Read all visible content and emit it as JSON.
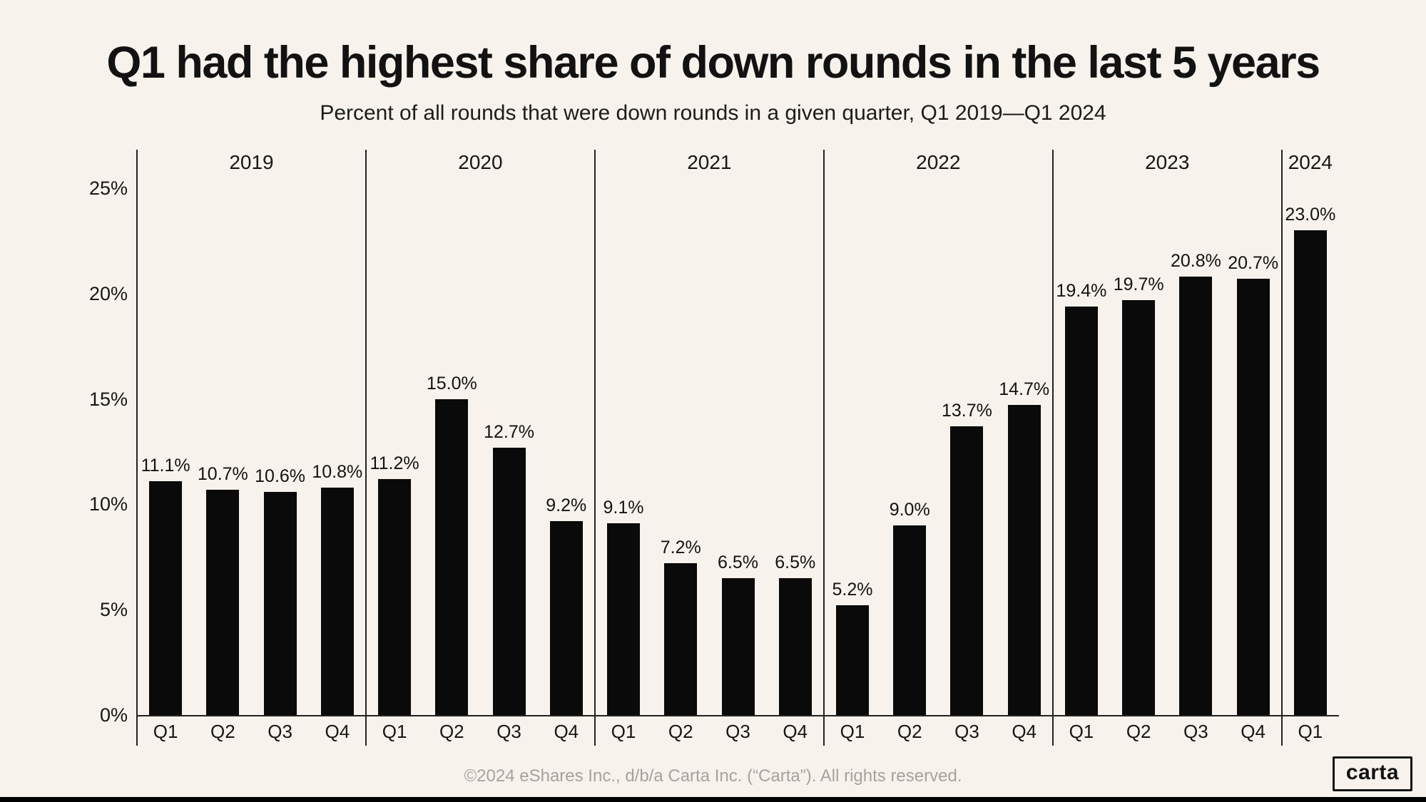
{
  "page": {
    "footer": "©2024 eShares Inc., d/b/a Carta Inc. (“Carta”). All rights reserved.",
    "logo_text": "carta"
  },
  "colors": {
    "background": "#f7f3ec",
    "bar": "#0a0a0a",
    "axis_line": "#222222",
    "text": "#161616",
    "muted_footer": "#a7a29c"
  },
  "chart_data": {
    "type": "bar",
    "title": "Q1 had the highest share of down rounds in the last 5 years",
    "subtitle": "Percent of all rounds that were down rounds in a given quarter, Q1 2019—Q1 2024",
    "xlabel": "",
    "ylabel": "",
    "ylim": [
      0,
      25
    ],
    "ytick_values": [
      0,
      5,
      10,
      15,
      20,
      25
    ],
    "ytick_suffix": "%",
    "grid": false,
    "legend": false,
    "value_label_decimals": 1,
    "value_label_suffix": "%",
    "groups": [
      {
        "year": "2019",
        "quarters": [
          "Q1",
          "Q2",
          "Q3",
          "Q4"
        ],
        "values": [
          11.1,
          10.7,
          10.6,
          10.8
        ]
      },
      {
        "year": "2020",
        "quarters": [
          "Q1",
          "Q2",
          "Q3",
          "Q4"
        ],
        "values": [
          11.2,
          15.0,
          12.7,
          9.2
        ]
      },
      {
        "year": "2021",
        "quarters": [
          "Q1",
          "Q2",
          "Q3",
          "Q4"
        ],
        "values": [
          9.1,
          7.2,
          6.5,
          6.5
        ]
      },
      {
        "year": "2022",
        "quarters": [
          "Q1",
          "Q2",
          "Q3",
          "Q4"
        ],
        "values": [
          5.2,
          9.0,
          13.7,
          14.7
        ]
      },
      {
        "year": "2023",
        "quarters": [
          "Q1",
          "Q2",
          "Q3",
          "Q4"
        ],
        "values": [
          19.4,
          19.7,
          20.8,
          20.7
        ]
      },
      {
        "year": "2024",
        "quarters": [
          "Q1"
        ],
        "values": [
          23.0
        ]
      }
    ]
  }
}
